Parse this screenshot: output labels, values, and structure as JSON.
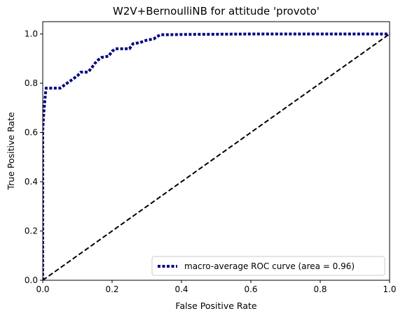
{
  "chart_data": {
    "type": "line",
    "title": "W2V+BernoulliNB for attitude 'provoto'",
    "xlabel": "False Positive Rate",
    "ylabel": "True Positive Rate",
    "xlim": [
      0.0,
      1.0
    ],
    "ylim": [
      0.0,
      1.05
    ],
    "xticks": [
      "0.0",
      "0.2",
      "0.4",
      "0.6",
      "0.8",
      "1.0"
    ],
    "yticks": [
      "0.0",
      "0.2",
      "0.4",
      "0.6",
      "0.8",
      "1.0"
    ],
    "grid": false,
    "legend": {
      "placement": "lower-right"
    },
    "series": [
      {
        "name": "macro-average ROC curve (area = 0.96)",
        "color": "#000080",
        "style": "dotted",
        "x": [
          0.0,
          0.0,
          0.003,
          0.006,
          0.008,
          0.01,
          0.02,
          0.03,
          0.05,
          0.06,
          0.07,
          0.08,
          0.09,
          0.1,
          0.11,
          0.13,
          0.14,
          0.15,
          0.16,
          0.17,
          0.19,
          0.2,
          0.21,
          0.23,
          0.25,
          0.26,
          0.28,
          0.3,
          0.32,
          0.33,
          0.34,
          0.36,
          0.4,
          0.5,
          0.6,
          0.7,
          0.8,
          0.9,
          1.0
        ],
        "y": [
          0.0,
          0.61,
          0.68,
          0.73,
          0.76,
          0.78,
          0.78,
          0.78,
          0.78,
          0.79,
          0.8,
          0.81,
          0.82,
          0.83,
          0.845,
          0.845,
          0.86,
          0.88,
          0.895,
          0.905,
          0.91,
          0.93,
          0.94,
          0.94,
          0.94,
          0.96,
          0.965,
          0.975,
          0.98,
          0.99,
          0.997,
          0.997,
          0.998,
          0.999,
          1.0,
          1.0,
          1.0,
          1.0,
          1.0
        ]
      },
      {
        "name": "",
        "color": "#000000",
        "style": "dashed",
        "x": [
          0.0,
          1.0
        ],
        "y": [
          0.0,
          1.0
        ]
      }
    ]
  }
}
